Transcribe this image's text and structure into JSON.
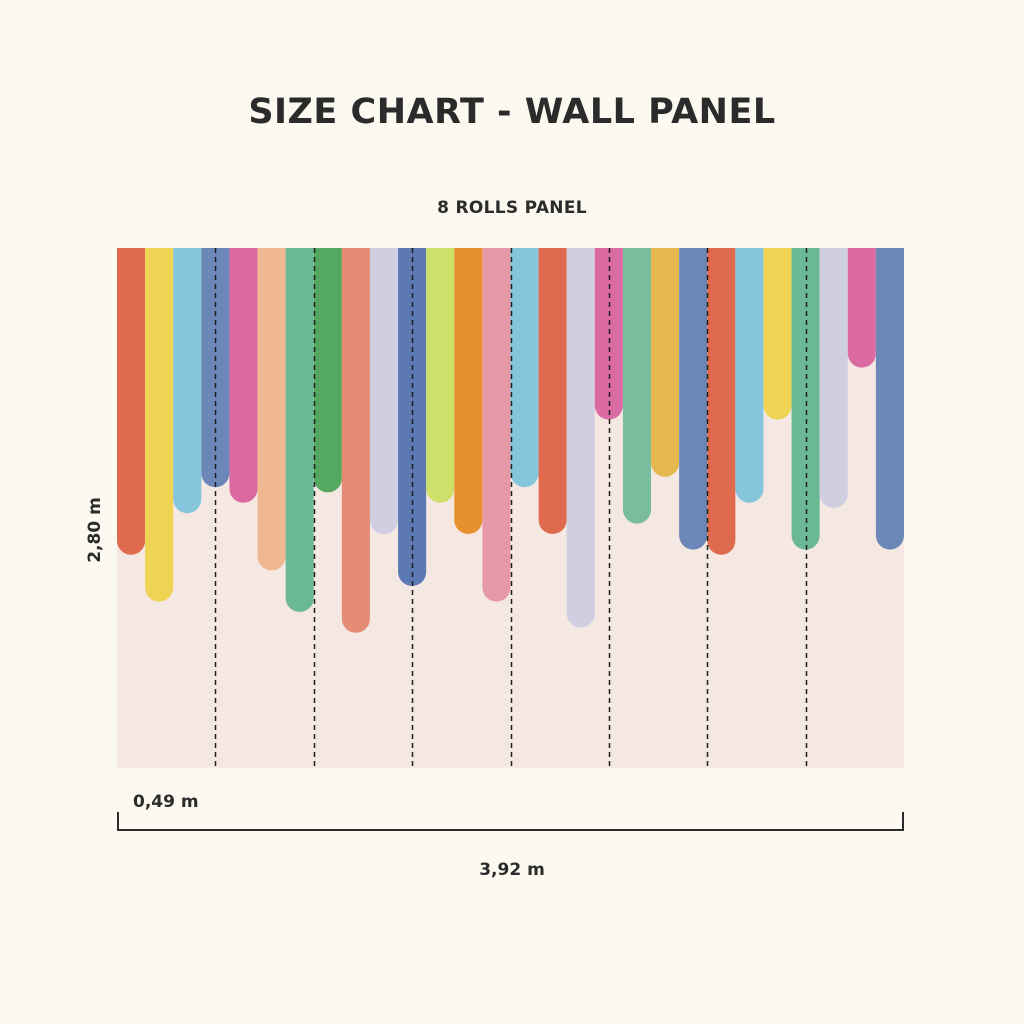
{
  "title": "SIZE CHART - WALL PANEL",
  "subtitle": "8 ROLLS PANEL",
  "dimensions": {
    "height": "2,80 m",
    "roll_width": "0,49 m",
    "total_width": "3,92 m"
  },
  "panel": {
    "rolls": 8,
    "background": "#f5e8e3",
    "stripes": [
      {
        "color": "#e06a4e",
        "length": 0.59
      },
      {
        "color": "#efd454",
        "length": 0.68
      },
      {
        "color": "#86c6dd",
        "length": 0.51
      },
      {
        "color": "#6a87b8",
        "length": 0.46
      },
      {
        "color": "#db6aa3",
        "length": 0.49
      },
      {
        "color": "#f0b890",
        "length": 0.62
      },
      {
        "color": "#6bb897",
        "length": 0.7
      },
      {
        "color": "#55a860",
        "length": 0.47
      },
      {
        "color": "#e48c74",
        "length": 0.74
      },
      {
        "color": "#d0cfe2",
        "length": 0.55
      },
      {
        "color": "#5c79b3",
        "length": 0.65
      },
      {
        "color": "#cfe06a",
        "length": 0.49
      },
      {
        "color": "#e6902e",
        "length": 0.55
      },
      {
        "color": "#e598a6",
        "length": 0.68
      },
      {
        "color": "#86c6dd",
        "length": 0.46
      },
      {
        "color": "#e06a4e",
        "length": 0.55
      },
      {
        "color": "#d0cfe2",
        "length": 0.73
      },
      {
        "color": "#db6aa3",
        "length": 0.33
      },
      {
        "color": "#79bc9e",
        "length": 0.53
      },
      {
        "color": "#e6b850",
        "length": 0.44
      },
      {
        "color": "#6a87b8",
        "length": 0.58
      },
      {
        "color": "#e06a4e",
        "length": 0.59
      },
      {
        "color": "#86c6dd",
        "length": 0.49
      },
      {
        "color": "#efd454",
        "length": 0.33
      },
      {
        "color": "#6bb897",
        "length": 0.58
      },
      {
        "color": "#d0cfe2",
        "length": 0.5
      },
      {
        "color": "#db6aa3",
        "length": 0.23
      },
      {
        "color": "#6a87b8",
        "length": 0.58
      }
    ]
  }
}
